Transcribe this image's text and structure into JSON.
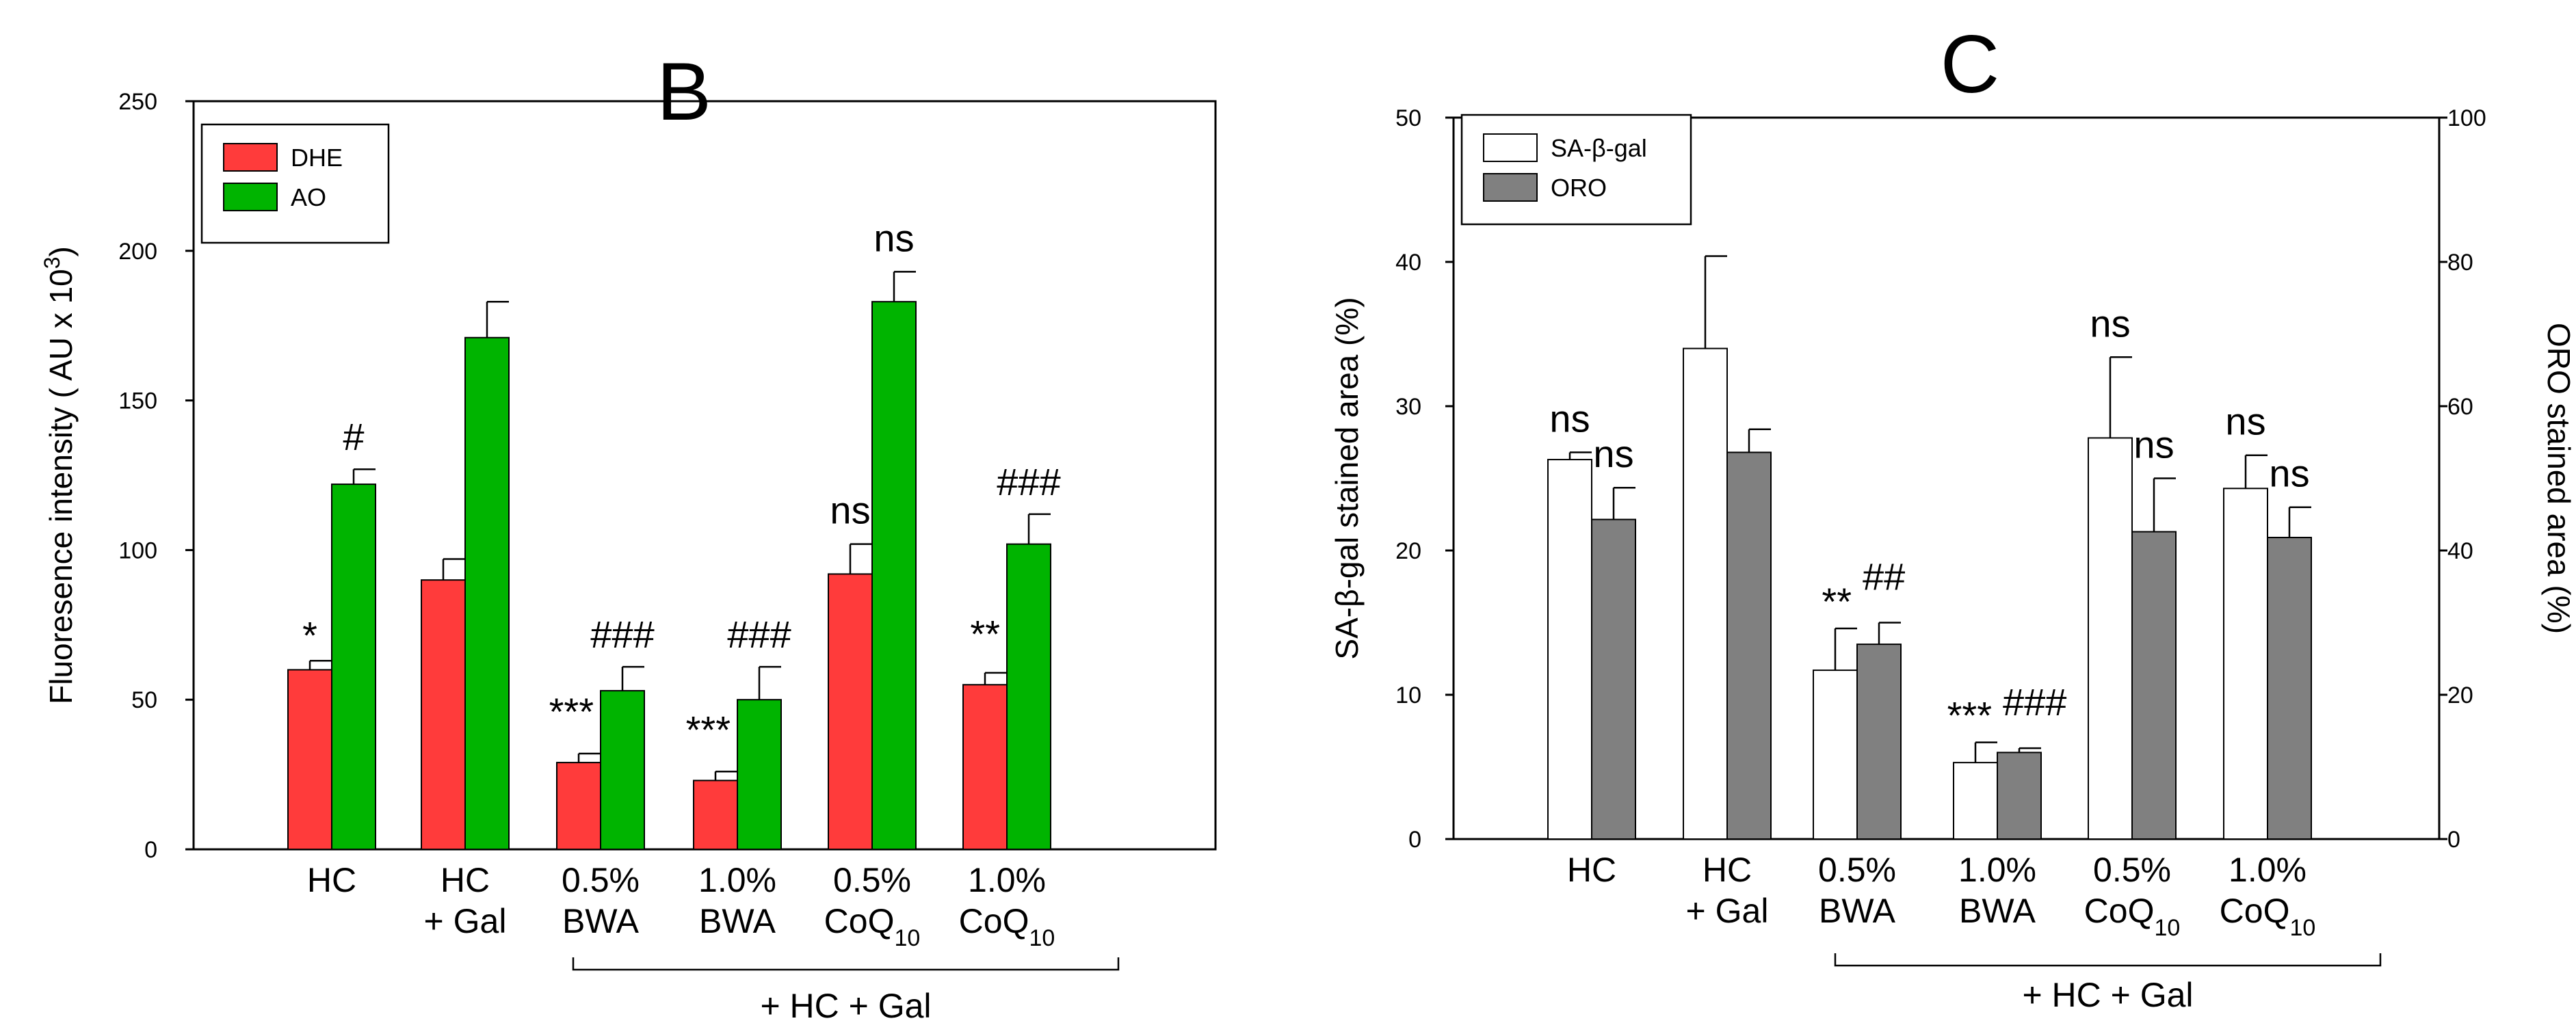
{
  "chart_data": [
    {
      "panel": "B",
      "type": "bar",
      "title": "B",
      "ylabel": "Fluoresence intensity ( AU x 10",
      "ylabel_sup": "3",
      "ylabel_end": ")",
      "ylim": [
        0,
        250
      ],
      "yticks": [
        "0",
        "50",
        "100",
        "150",
        "200",
        "250"
      ],
      "categories": [
        {
          "line1": "HC",
          "line2": "",
          "sub": ""
        },
        {
          "line1": "HC",
          "line2": "+ Gal",
          "sub": ""
        },
        {
          "line1": "0.5%",
          "line2": "BWA",
          "sub": ""
        },
        {
          "line1": "1.0%",
          "line2": "BWA",
          "sub": ""
        },
        {
          "line1": "0.5%",
          "line2": "CoQ",
          "sub": "10"
        },
        {
          "line1": "1.0%",
          "line2": "CoQ",
          "sub": "10"
        }
      ],
      "group_label": "+ HC + Gal",
      "series": [
        {
          "name": "DHE",
          "color": "#ff3b3b",
          "values": [
            60,
            90,
            29,
            23,
            92,
            55
          ],
          "errors": [
            3,
            7,
            3,
            3,
            10,
            4
          ],
          "labels": [
            "*",
            "",
            "***",
            "***",
            "ns",
            "**"
          ]
        },
        {
          "name": "AO",
          "color": "#00b400",
          "values": [
            122,
            171,
            53,
            50,
            183,
            102
          ],
          "errors": [
            5,
            12,
            8,
            11,
            10,
            10
          ],
          "labels": [
            "#",
            "",
            "###",
            "###",
            "ns",
            "###"
          ]
        }
      ],
      "legend": "top-left"
    },
    {
      "panel": "C",
      "type": "bar",
      "title": "C",
      "ylabel": "SA-β-gal stained area (%)",
      "ylabel_right": "ORO stained area (%)",
      "ylim": [
        0,
        50
      ],
      "ylim_right": [
        0,
        100
      ],
      "yticks": [
        "0",
        "10",
        "20",
        "30",
        "40",
        "50"
      ],
      "yticks_right": [
        "0",
        "20",
        "40",
        "60",
        "80",
        "100"
      ],
      "categories": [
        {
          "line1": "HC",
          "line2": "",
          "sub": ""
        },
        {
          "line1": "HC",
          "line2": "+ Gal",
          "sub": ""
        },
        {
          "line1": "0.5%",
          "line2": "BWA",
          "sub": ""
        },
        {
          "line1": "1.0%",
          "line2": "BWA",
          "sub": ""
        },
        {
          "line1": "0.5%",
          "line2": "CoQ",
          "sub": "10"
        },
        {
          "line1": "1.0%",
          "line2": "CoQ",
          "sub": "10"
        }
      ],
      "group_label": "+ HC + Gal",
      "series": [
        {
          "name": "SA-β-gal",
          "color": "#ffffff",
          "axis": "left",
          "values": [
            26.3,
            34,
            11.7,
            5.3,
            27.8,
            24.3
          ],
          "errors": [
            0.5,
            6.4,
            2.9,
            1.4,
            5.6,
            2.3
          ],
          "labels": [
            "ns",
            "",
            "**",
            "***",
            "ns",
            "ns"
          ]
        },
        {
          "name": "ORO",
          "color": "#808080",
          "axis": "right",
          "values": [
            44.3,
            53.6,
            27,
            12,
            42.6,
            41.8
          ],
          "errors": [
            4.4,
            3.2,
            3,
            0.6,
            7.4,
            4.2
          ],
          "labels": [
            "ns",
            "",
            "##",
            "###",
            "ns",
            "ns"
          ]
        }
      ],
      "legend": "top-left"
    }
  ]
}
